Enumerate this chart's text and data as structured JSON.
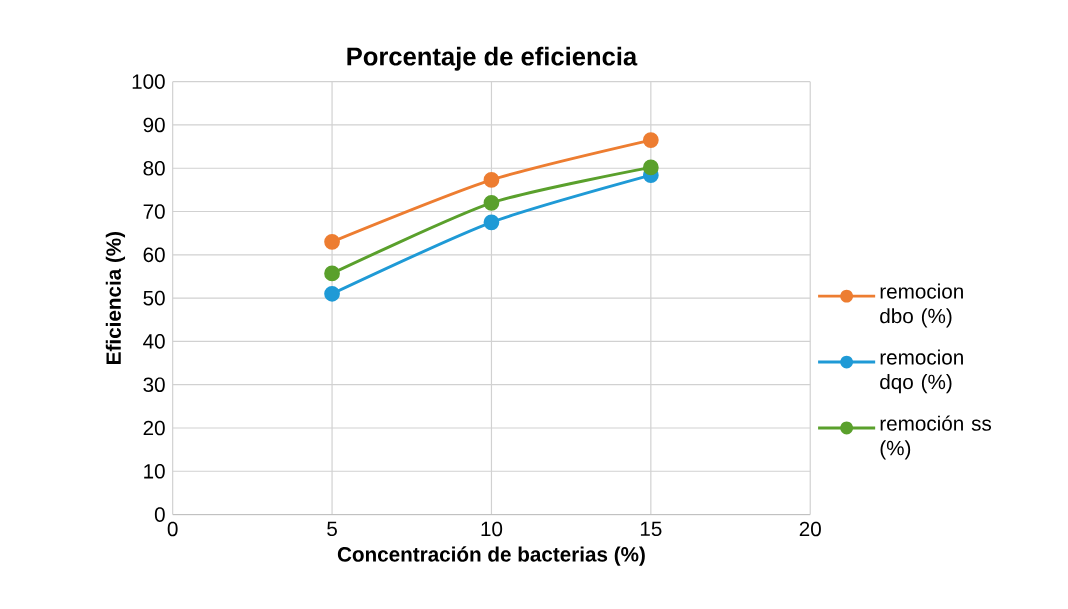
{
  "chart_data": {
    "type": "line",
    "title": "Porcentaje de eficiencia",
    "xlabel": "Concentración de bacterias (%)",
    "ylabel": "Eficiencia (%)",
    "x": [
      5,
      10,
      15
    ],
    "series": [
      {
        "name": "remocion dbo (%)",
        "color": "#ed7d31",
        "values": [
          63,
          77.3,
          86.5
        ]
      },
      {
        "name": "remocion dqo (%)",
        "color": "#1f9ad6",
        "values": [
          51,
          67.5,
          78.4
        ]
      },
      {
        "name": "remoción ss (%)",
        "color": "#5aa02c",
        "values": [
          55.7,
          72,
          80.2
        ]
      }
    ],
    "xlim": [
      0,
      20
    ],
    "ylim": [
      0,
      100
    ],
    "xticks": [
      0,
      5,
      10,
      15,
      20
    ],
    "yticks": [
      0,
      10,
      20,
      30,
      40,
      50,
      60,
      70,
      80,
      90,
      100
    ],
    "grid": true,
    "legend": "right",
    "marker": "circle",
    "line_style": "solid"
  }
}
